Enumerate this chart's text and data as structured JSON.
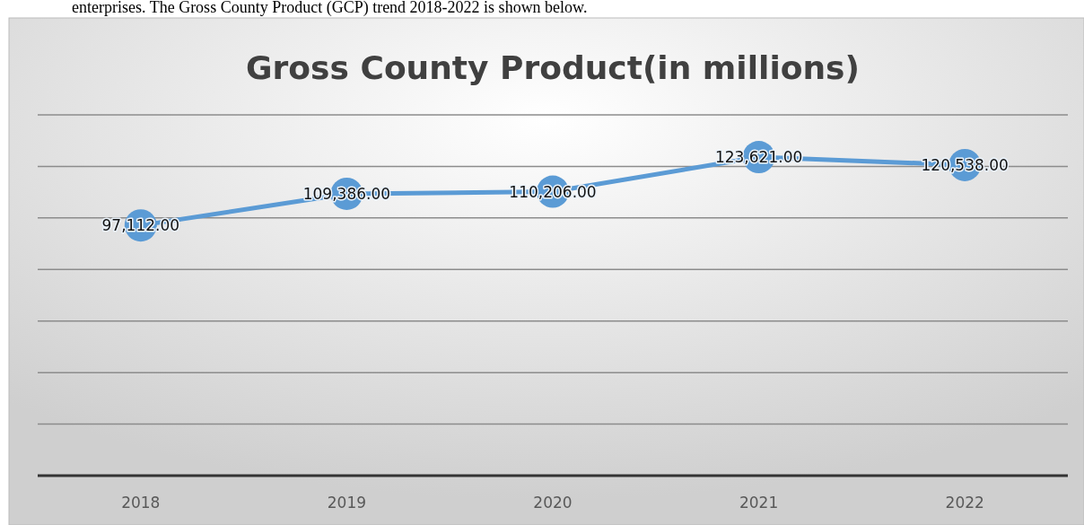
{
  "chart_data": {
    "type": "line",
    "title": "Gross County Product(in millions)",
    "annotations": [
      "enterprises. The Gross County Product (GCP) trend 2018-2022 is shown below."
    ],
    "categories": [
      "2018",
      "2019",
      "2020",
      "2021",
      "2022"
    ],
    "series": [
      {
        "color": "#5b9bd5",
        "values": [
          97112,
          109386,
          110206,
          123621,
          120538
        ],
        "value_labels": [
          "97,112.00",
          "109,386.00",
          "110,206.00",
          "123,621.00",
          "120,538.00"
        ]
      }
    ],
    "ylim": [
      0,
      140000
    ],
    "yticks": [
      {
        "value": 0,
        "label": null
      },
      {
        "value": 20000,
        "label": null
      },
      {
        "value": 40000,
        "label": null
      },
      {
        "value": 60000,
        "label": null
      },
      {
        "value": 80000,
        "label": null
      },
      {
        "value": 100000,
        "label": null
      },
      {
        "value": 120000,
        "label": null
      },
      {
        "value": 140000,
        "label": null
      }
    ],
    "tick_labels": "x",
    "grid": "y",
    "marker": "circle",
    "line_style": "solid"
  }
}
